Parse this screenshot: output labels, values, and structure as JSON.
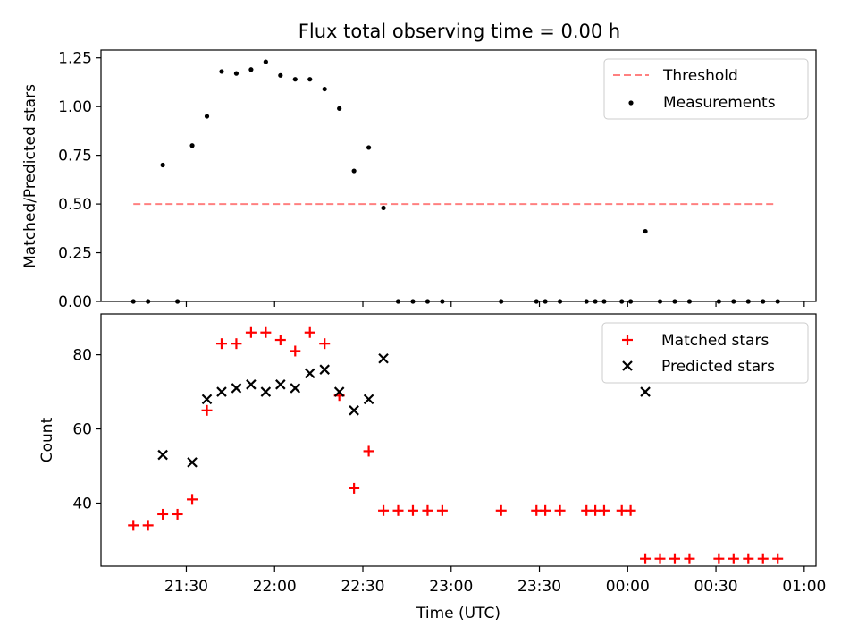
{
  "title": "Flux total observing time = 0.00 h",
  "xlabel": "Time (UTC)",
  "x_ticks": [
    "21:30",
    "22:00",
    "22:30",
    "23:00",
    "23:30",
    "00:00",
    "00:30",
    "01:00"
  ],
  "colors": {
    "threshold": "#ff8080",
    "measurements": "#000000",
    "matched": "#ff0000",
    "predicted": "#000000"
  },
  "chart_data": [
    {
      "type": "scatter",
      "panel": "top",
      "ylabel": "Matched/Predicted stars",
      "ylim": [
        0,
        1.29
      ],
      "yticks": [
        "0.00",
        "0.25",
        "0.50",
        "0.75",
        "1.00",
        "1.25"
      ],
      "legend_position": "upper right",
      "threshold": {
        "name": "Threshold",
        "y": 0.5,
        "x_range": [
          "21:12",
          "00:50"
        ]
      },
      "series": [
        {
          "name": "Measurements",
          "points": [
            [
              "21:12",
              0.0
            ],
            [
              "21:17",
              0.0
            ],
            [
              "21:22",
              0.7
            ],
            [
              "21:27",
              0.0
            ],
            [
              "21:32",
              0.8
            ],
            [
              "21:37",
              0.95
            ],
            [
              "21:42",
              1.18
            ],
            [
              "21:47",
              1.17
            ],
            [
              "21:52",
              1.19
            ],
            [
              "21:57",
              1.23
            ],
            [
              "22:02",
              1.16
            ],
            [
              "22:07",
              1.14
            ],
            [
              "22:12",
              1.14
            ],
            [
              "22:17",
              1.09
            ],
            [
              "22:22",
              0.99
            ],
            [
              "22:27",
              0.67
            ],
            [
              "22:32",
              0.79
            ],
            [
              "22:37",
              0.48
            ],
            [
              "22:42",
              0.0
            ],
            [
              "22:47",
              0.0
            ],
            [
              "22:52",
              0.0
            ],
            [
              "22:57",
              0.0
            ],
            [
              "23:17",
              0.0
            ],
            [
              "23:29",
              0.0
            ],
            [
              "23:32",
              0.0
            ],
            [
              "23:37",
              0.0
            ],
            [
              "23:46",
              0.0
            ],
            [
              "23:49",
              0.0
            ],
            [
              "23:52",
              0.0
            ],
            [
              "23:58",
              0.0
            ],
            [
              "00:01",
              0.0
            ],
            [
              "00:06",
              0.36
            ],
            [
              "00:11",
              0.0
            ],
            [
              "00:16",
              0.0
            ],
            [
              "00:21",
              0.0
            ],
            [
              "00:31",
              0.0
            ],
            [
              "00:36",
              0.0
            ],
            [
              "00:41",
              0.0
            ],
            [
              "00:46",
              0.0
            ],
            [
              "00:51",
              0.0
            ]
          ]
        }
      ]
    },
    {
      "type": "scatter",
      "panel": "bottom",
      "ylabel": "Count",
      "ylim": [
        23,
        91
      ],
      "yticks": [
        "40",
        "60",
        "80"
      ],
      "legend_position": "upper right",
      "series": [
        {
          "name": "Matched stars",
          "marker": "plus",
          "points": [
            [
              "21:12",
              34
            ],
            [
              "21:17",
              34
            ],
            [
              "21:22",
              37
            ],
            [
              "21:27",
              37
            ],
            [
              "21:32",
              41
            ],
            [
              "21:37",
              65
            ],
            [
              "21:42",
              83
            ],
            [
              "21:47",
              83
            ],
            [
              "21:52",
              86
            ],
            [
              "21:57",
              86
            ],
            [
              "22:02",
              84
            ],
            [
              "22:07",
              81
            ],
            [
              "22:12",
              86
            ],
            [
              "22:17",
              83
            ],
            [
              "22:22",
              69
            ],
            [
              "22:27",
              44
            ],
            [
              "22:32",
              54
            ],
            [
              "22:37",
              38
            ],
            [
              "22:42",
              38
            ],
            [
              "22:47",
              38
            ],
            [
              "22:52",
              38
            ],
            [
              "22:57",
              38
            ],
            [
              "23:17",
              38
            ],
            [
              "23:29",
              38
            ],
            [
              "23:32",
              38
            ],
            [
              "23:37",
              38
            ],
            [
              "23:46",
              38
            ],
            [
              "23:49",
              38
            ],
            [
              "23:52",
              38
            ],
            [
              "23:58",
              38
            ],
            [
              "00:01",
              38
            ],
            [
              "00:06",
              25
            ],
            [
              "00:11",
              25
            ],
            [
              "00:16",
              25
            ],
            [
              "00:21",
              25
            ],
            [
              "00:31",
              25
            ],
            [
              "00:36",
              25
            ],
            [
              "00:41",
              25
            ],
            [
              "00:46",
              25
            ],
            [
              "00:51",
              25
            ]
          ]
        },
        {
          "name": "Predicted stars",
          "marker": "x",
          "points": [
            [
              "21:22",
              53
            ],
            [
              "21:32",
              51
            ],
            [
              "21:37",
              68
            ],
            [
              "21:42",
              70
            ],
            [
              "21:47",
              71
            ],
            [
              "21:52",
              72
            ],
            [
              "21:57",
              70
            ],
            [
              "22:02",
              72
            ],
            [
              "22:07",
              71
            ],
            [
              "22:12",
              75
            ],
            [
              "22:17",
              76
            ],
            [
              "22:22",
              70
            ],
            [
              "22:27",
              65
            ],
            [
              "22:32",
              68
            ],
            [
              "22:37",
              79
            ],
            [
              "00:06",
              70
            ]
          ]
        }
      ]
    }
  ]
}
